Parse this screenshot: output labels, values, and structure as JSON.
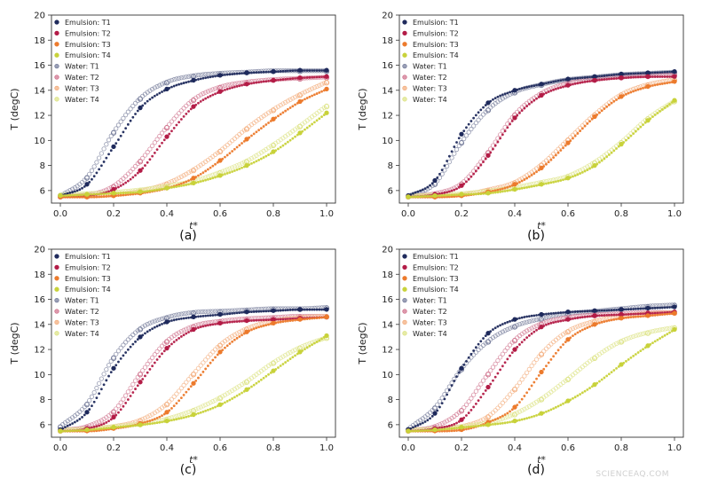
{
  "watermark": "SCIENCEAQ.COM",
  "colors": {
    "T1": "#1f2a5c",
    "T2": "#b31c47",
    "T3": "#ec7a2c",
    "T4": "#c8d23a"
  },
  "chart_data": [
    {
      "type": "scatter",
      "label": "(a)",
      "xlabel": "t*",
      "ylabel": "T (degC)",
      "xlim": [
        0.0,
        1.0
      ],
      "ylim": [
        5,
        20
      ],
      "xticks": [
        "0.0",
        "0.2",
        "0.4",
        "0.6",
        "0.8",
        "1.0"
      ],
      "yticks": [
        "6",
        "8",
        "10",
        "12",
        "14",
        "16",
        "18",
        "20"
      ],
      "legend_position": "top-left",
      "series": [
        {
          "name": "Emulsion: T1",
          "x": [
            0.0,
            0.1,
            0.2,
            0.3,
            0.4,
            0.5,
            0.6,
            0.7,
            0.8,
            0.9,
            1.0
          ],
          "y": [
            5.6,
            6.5,
            9.5,
            12.6,
            14.1,
            14.8,
            15.2,
            15.4,
            15.5,
            15.6,
            15.6
          ]
        },
        {
          "name": "Emulsion: T2",
          "x": [
            0.0,
            0.1,
            0.2,
            0.3,
            0.4,
            0.5,
            0.6,
            0.7,
            0.8,
            0.9,
            1.0
          ],
          "y": [
            5.5,
            5.6,
            6.1,
            7.6,
            10.3,
            12.7,
            13.9,
            14.5,
            14.8,
            15.0,
            15.1
          ]
        },
        {
          "name": "Emulsion: T3",
          "x": [
            0.0,
            0.1,
            0.2,
            0.3,
            0.4,
            0.5,
            0.6,
            0.7,
            0.8,
            0.9,
            1.0
          ],
          "y": [
            5.5,
            5.5,
            5.6,
            5.8,
            6.2,
            7.0,
            8.4,
            10.1,
            11.7,
            13.1,
            14.1
          ]
        },
        {
          "name": "Emulsion: T4",
          "x": [
            0.0,
            0.1,
            0.2,
            0.3,
            0.4,
            0.5,
            0.6,
            0.7,
            0.8,
            0.9,
            1.0
          ],
          "y": [
            5.6,
            5.7,
            5.8,
            5.9,
            6.2,
            6.6,
            7.2,
            8.0,
            9.1,
            10.6,
            12.2
          ]
        },
        {
          "name": "Water: T1",
          "x": [
            0.0,
            0.1,
            0.2,
            0.3,
            0.4,
            0.5,
            0.6,
            0.7,
            0.8,
            0.9,
            1.0
          ],
          "y": [
            5.5,
            7.0,
            10.6,
            13.3,
            14.6,
            15.1,
            15.3,
            15.4,
            15.5,
            15.5,
            15.5
          ]
        },
        {
          "name": "Water: T2",
          "x": [
            0.0,
            0.1,
            0.2,
            0.3,
            0.4,
            0.5,
            0.6,
            0.7,
            0.8,
            0.9,
            1.0
          ],
          "y": [
            5.5,
            5.6,
            6.3,
            8.3,
            11.0,
            13.2,
            14.2,
            14.6,
            14.8,
            14.9,
            15.0
          ]
        },
        {
          "name": "Water: T3",
          "x": [
            0.0,
            0.1,
            0.2,
            0.3,
            0.4,
            0.5,
            0.6,
            0.7,
            0.8,
            0.9,
            1.0
          ],
          "y": [
            5.5,
            5.5,
            5.6,
            5.9,
            6.5,
            7.6,
            9.1,
            10.9,
            12.4,
            13.6,
            14.6
          ]
        },
        {
          "name": "Water: T4",
          "x": [
            0.0,
            0.1,
            0.2,
            0.3,
            0.4,
            0.5,
            0.6,
            0.7,
            0.8,
            0.9,
            1.0
          ],
          "y": [
            5.6,
            5.7,
            5.8,
            6.0,
            6.3,
            6.7,
            7.4,
            8.3,
            9.6,
            11.1,
            12.7
          ]
        }
      ]
    },
    {
      "type": "scatter",
      "label": "(b)",
      "xlabel": "t*",
      "ylabel": "T (degC)",
      "xlim": [
        0.0,
        1.0
      ],
      "ylim": [
        5,
        20
      ],
      "xticks": [
        "0.0",
        "0.2",
        "0.4",
        "0.6",
        "0.8",
        "1.0"
      ],
      "yticks": [
        "6",
        "8",
        "10",
        "12",
        "14",
        "16",
        "18",
        "20"
      ],
      "legend_position": "top-left",
      "series": [
        {
          "name": "Emulsion: T1",
          "x": [
            0.0,
            0.1,
            0.2,
            0.3,
            0.4,
            0.5,
            0.6,
            0.7,
            0.8,
            0.9,
            1.0
          ],
          "y": [
            5.6,
            6.8,
            10.5,
            13.0,
            14.0,
            14.5,
            14.9,
            15.1,
            15.3,
            15.4,
            15.5
          ]
        },
        {
          "name": "Emulsion: T2",
          "x": [
            0.0,
            0.1,
            0.2,
            0.3,
            0.4,
            0.5,
            0.6,
            0.7,
            0.8,
            0.9,
            1.0
          ],
          "y": [
            5.5,
            5.7,
            6.4,
            8.8,
            11.8,
            13.6,
            14.4,
            14.8,
            15.0,
            15.1,
            15.1
          ]
        },
        {
          "name": "Emulsion: T3",
          "x": [
            0.0,
            0.1,
            0.2,
            0.3,
            0.4,
            0.5,
            0.6,
            0.7,
            0.8,
            0.9,
            1.0
          ],
          "y": [
            5.5,
            5.5,
            5.6,
            5.9,
            6.5,
            7.8,
            9.8,
            11.9,
            13.5,
            14.3,
            14.7
          ]
        },
        {
          "name": "Emulsion: T4",
          "x": [
            0.0,
            0.1,
            0.2,
            0.3,
            0.4,
            0.5,
            0.6,
            0.7,
            0.8,
            0.9,
            1.0
          ],
          "y": [
            5.5,
            5.6,
            5.7,
            5.8,
            6.1,
            6.5,
            7.0,
            8.0,
            9.7,
            11.6,
            13.2
          ]
        },
        {
          "name": "Water: T1",
          "x": [
            0.0,
            0.1,
            0.2,
            0.3,
            0.4,
            0.5,
            0.6,
            0.7,
            0.8,
            0.9,
            1.0
          ],
          "y": [
            5.5,
            6.5,
            9.8,
            12.4,
            13.8,
            14.4,
            14.8,
            15.0,
            15.2,
            15.3,
            15.4
          ]
        },
        {
          "name": "Water: T2",
          "x": [
            0.0,
            0.1,
            0.2,
            0.3,
            0.4,
            0.5,
            0.6,
            0.7,
            0.8,
            0.9,
            1.0
          ],
          "y": [
            5.5,
            5.7,
            6.5,
            9.0,
            12.0,
            13.7,
            14.5,
            14.8,
            15.0,
            15.1,
            15.2
          ]
        },
        {
          "name": "Water: T3",
          "x": [
            0.0,
            0.1,
            0.2,
            0.3,
            0.4,
            0.5,
            0.6,
            0.7,
            0.8,
            0.9,
            1.0
          ],
          "y": [
            5.5,
            5.5,
            5.6,
            6.0,
            6.6,
            8.0,
            10.0,
            12.0,
            13.6,
            14.4,
            14.8
          ]
        },
        {
          "name": "Water: T4",
          "x": [
            0.0,
            0.1,
            0.2,
            0.3,
            0.4,
            0.5,
            0.6,
            0.7,
            0.8,
            0.9,
            1.0
          ],
          "y": [
            5.5,
            5.6,
            5.7,
            5.9,
            6.2,
            6.6,
            7.1,
            8.2,
            9.8,
            11.7,
            13.1
          ]
        }
      ]
    },
    {
      "type": "scatter",
      "label": "(c)",
      "xlabel": "t*",
      "ylabel": "T (degC)",
      "xlim": [
        0.0,
        1.0
      ],
      "ylim": [
        5,
        20
      ],
      "xticks": [
        "0.0",
        "0.2",
        "0.4",
        "0.6",
        "0.8",
        "1.0"
      ],
      "yticks": [
        "6",
        "8",
        "10",
        "12",
        "14",
        "16",
        "18",
        "20"
      ],
      "legend_position": "top-left",
      "series": [
        {
          "name": "Emulsion: T1",
          "x": [
            0.0,
            0.1,
            0.2,
            0.3,
            0.4,
            0.5,
            0.6,
            0.7,
            0.8,
            0.9,
            1.0
          ],
          "y": [
            5.6,
            7.0,
            10.5,
            13.0,
            14.2,
            14.6,
            14.8,
            15.0,
            15.1,
            15.2,
            15.2
          ]
        },
        {
          "name": "Emulsion: T2",
          "x": [
            0.0,
            0.1,
            0.2,
            0.3,
            0.4,
            0.5,
            0.6,
            0.7,
            0.8,
            0.9,
            1.0
          ],
          "y": [
            5.5,
            5.7,
            6.6,
            9.4,
            12.1,
            13.6,
            14.1,
            14.3,
            14.4,
            14.5,
            14.6
          ]
        },
        {
          "name": "Emulsion: T3",
          "x": [
            0.0,
            0.1,
            0.2,
            0.3,
            0.4,
            0.5,
            0.6,
            0.7,
            0.8,
            0.9,
            1.0
          ],
          "y": [
            5.5,
            5.5,
            5.7,
            6.1,
            7.0,
            9.3,
            11.8,
            13.4,
            14.1,
            14.4,
            14.6
          ]
        },
        {
          "name": "Emulsion: T4",
          "x": [
            0.0,
            0.1,
            0.2,
            0.3,
            0.4,
            0.5,
            0.6,
            0.7,
            0.8,
            0.9,
            1.0
          ],
          "y": [
            5.5,
            5.6,
            5.8,
            6.0,
            6.3,
            6.8,
            7.6,
            8.8,
            10.3,
            11.8,
            13.1
          ]
        },
        {
          "name": "Water: T1",
          "x": [
            0.0,
            0.1,
            0.2,
            0.3,
            0.4,
            0.5,
            0.6,
            0.7,
            0.8,
            0.9,
            1.0
          ],
          "y": [
            5.8,
            7.6,
            11.3,
            13.6,
            14.5,
            14.9,
            15.0,
            15.1,
            15.2,
            15.2,
            15.3
          ]
        },
        {
          "name": "Water: T2",
          "x": [
            0.0,
            0.1,
            0.2,
            0.3,
            0.4,
            0.5,
            0.6,
            0.7,
            0.8,
            0.9,
            1.0
          ],
          "y": [
            5.5,
            5.8,
            7.0,
            10.0,
            12.6,
            13.8,
            14.2,
            14.4,
            14.5,
            14.6,
            14.6
          ]
        },
        {
          "name": "Water: T3",
          "x": [
            0.0,
            0.1,
            0.2,
            0.3,
            0.4,
            0.5,
            0.6,
            0.7,
            0.8,
            0.9,
            1.0
          ],
          "y": [
            5.5,
            5.6,
            5.8,
            6.3,
            7.6,
            10.0,
            12.3,
            13.6,
            14.2,
            14.5,
            14.6
          ]
        },
        {
          "name": "Water: T4",
          "x": [
            0.0,
            0.1,
            0.2,
            0.3,
            0.4,
            0.5,
            0.6,
            0.7,
            0.8,
            0.9,
            1.0
          ],
          "y": [
            5.5,
            5.6,
            5.8,
            6.0,
            6.4,
            7.1,
            8.1,
            9.4,
            10.9,
            12.1,
            12.9
          ]
        }
      ]
    },
    {
      "type": "scatter",
      "label": "(d)",
      "xlabel": "t*",
      "ylabel": "T (degC)",
      "xlim": [
        0.0,
        1.0
      ],
      "ylim": [
        5,
        20
      ],
      "xticks": [
        "0.0",
        "0.2",
        "0.4",
        "0.6",
        "0.8",
        "1.0"
      ],
      "yticks": [
        "6",
        "8",
        "10",
        "12",
        "14",
        "16",
        "18",
        "20"
      ],
      "legend_position": "top-left",
      "series": [
        {
          "name": "Emulsion: T1",
          "x": [
            0.0,
            0.1,
            0.2,
            0.3,
            0.4,
            0.5,
            0.6,
            0.7,
            0.8,
            0.9,
            1.0
          ],
          "y": [
            5.6,
            6.9,
            10.5,
            13.3,
            14.4,
            14.8,
            15.0,
            15.1,
            15.2,
            15.3,
            15.4
          ]
        },
        {
          "name": "Emulsion: T2",
          "x": [
            0.0,
            0.1,
            0.2,
            0.3,
            0.4,
            0.5,
            0.6,
            0.7,
            0.8,
            0.9,
            1.0
          ],
          "y": [
            5.5,
            5.7,
            6.4,
            9.0,
            12.0,
            13.8,
            14.4,
            14.7,
            14.8,
            14.9,
            15.0
          ]
        },
        {
          "name": "Emulsion: T3",
          "x": [
            0.0,
            0.1,
            0.2,
            0.3,
            0.4,
            0.5,
            0.6,
            0.7,
            0.8,
            0.9,
            1.0
          ],
          "y": [
            5.5,
            5.5,
            5.6,
            6.2,
            7.4,
            10.2,
            12.8,
            14.0,
            14.5,
            14.7,
            14.9
          ]
        },
        {
          "name": "Emulsion: T4",
          "x": [
            0.0,
            0.1,
            0.2,
            0.3,
            0.4,
            0.5,
            0.6,
            0.7,
            0.8,
            0.9,
            1.0
          ],
          "y": [
            5.5,
            5.6,
            5.8,
            6.0,
            6.3,
            6.9,
            7.9,
            9.2,
            10.8,
            12.3,
            13.6
          ]
        },
        {
          "name": "Water: T1",
          "x": [
            0.0,
            0.1,
            0.2,
            0.3,
            0.4,
            0.5,
            0.6,
            0.7,
            0.8,
            0.9,
            1.0
          ],
          "y": [
            5.6,
            7.3,
            10.4,
            12.6,
            13.8,
            14.4,
            14.8,
            15.0,
            15.2,
            15.4,
            15.5
          ]
        },
        {
          "name": "Water: T2",
          "x": [
            0.0,
            0.1,
            0.2,
            0.3,
            0.4,
            0.5,
            0.6,
            0.7,
            0.8,
            0.9,
            1.0
          ],
          "y": [
            5.5,
            5.8,
            7.1,
            10.0,
            12.7,
            14.0,
            14.5,
            14.7,
            14.8,
            14.9,
            14.9
          ]
        },
        {
          "name": "Water: T3",
          "x": [
            0.0,
            0.1,
            0.2,
            0.3,
            0.4,
            0.5,
            0.6,
            0.7,
            0.8,
            0.9,
            1.0
          ],
          "y": [
            5.5,
            5.6,
            5.8,
            6.6,
            8.8,
            11.6,
            13.4,
            14.2,
            14.6,
            14.8,
            14.9
          ]
        },
        {
          "name": "Water: T4",
          "x": [
            0.0,
            0.1,
            0.2,
            0.3,
            0.4,
            0.5,
            0.6,
            0.7,
            0.8,
            0.9,
            1.0
          ],
          "y": [
            5.5,
            5.6,
            5.8,
            6.1,
            6.8,
            8.0,
            9.6,
            11.3,
            12.6,
            13.3,
            13.7
          ]
        }
      ]
    }
  ]
}
